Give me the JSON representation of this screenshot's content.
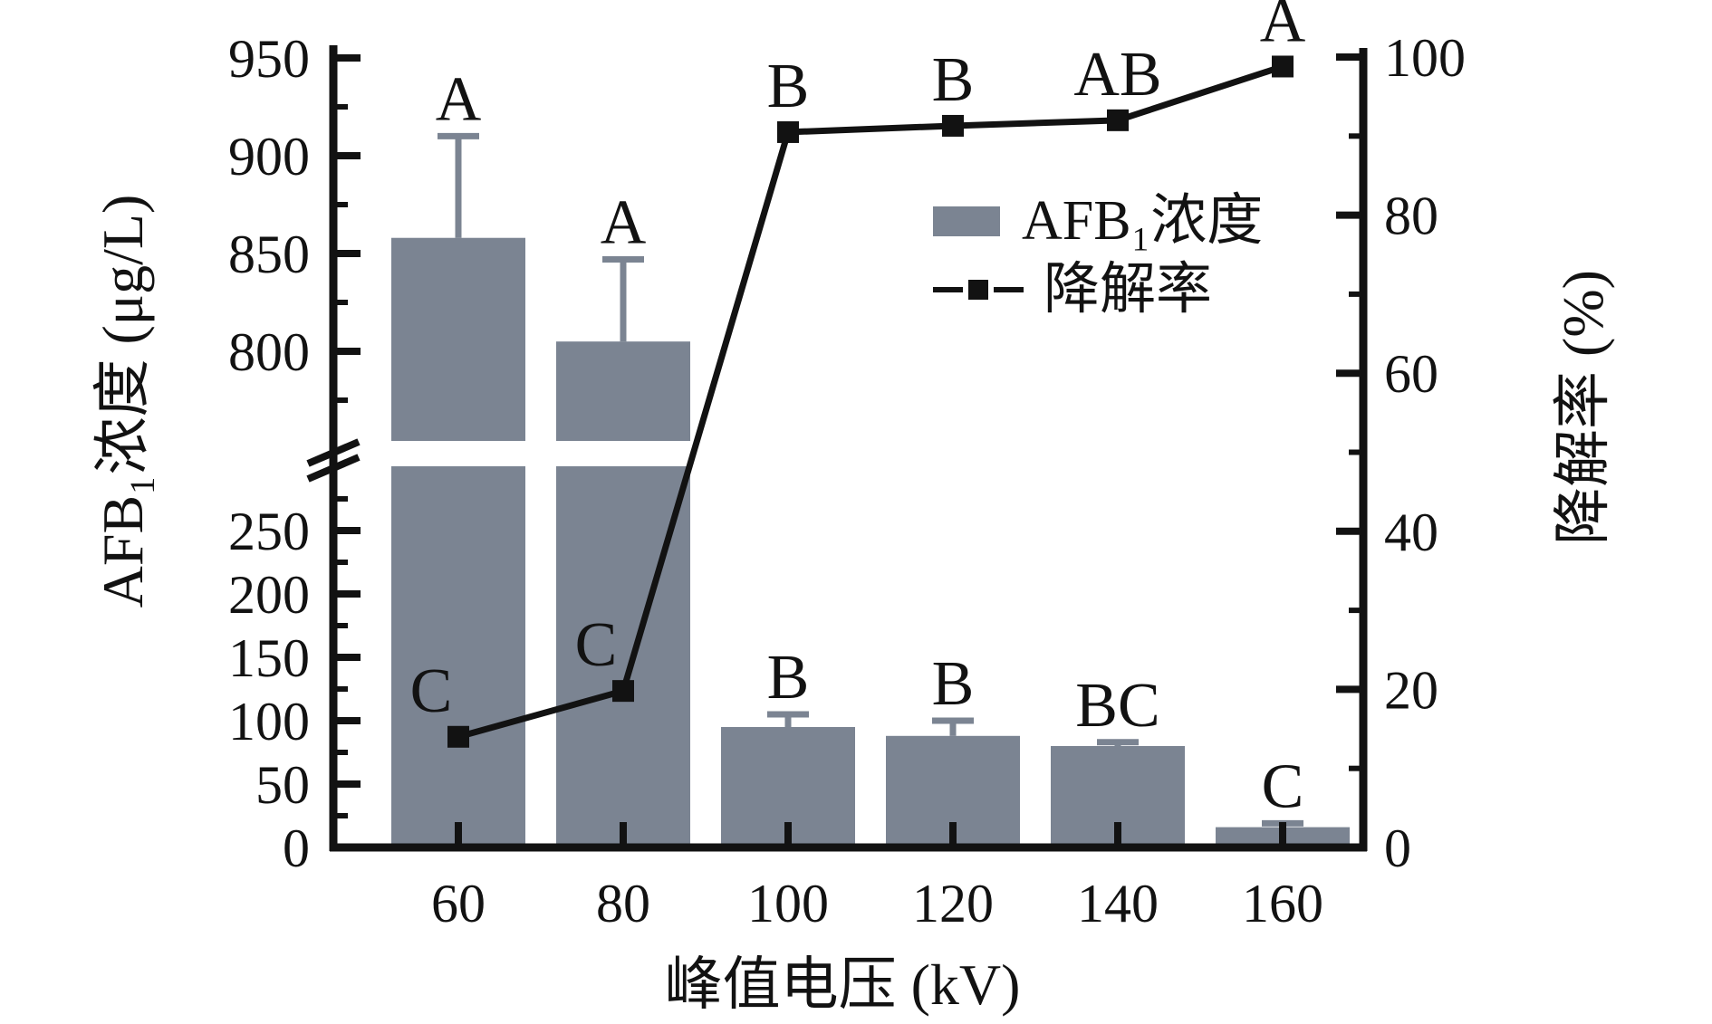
{
  "chart_data": {
    "type": "bar",
    "categories": [
      "60",
      "80",
      "100",
      "120",
      "140",
      "160"
    ],
    "xlabel": "峰值电压 (kV)",
    "left_axis": {
      "label": "AFB₁浓度 (μg/L)",
      "unit": "μg/L",
      "lower_ticks": [
        0,
        50,
        100,
        150,
        200,
        250
      ],
      "upper_ticks": [
        800,
        850,
        900,
        950
      ],
      "minor_step": 25,
      "axis_break_between": [
        310,
        770
      ]
    },
    "right_axis": {
      "label": "降解率 (%)",
      "unit": "%",
      "ticks": [
        0,
        20,
        40,
        60,
        80,
        100
      ],
      "minor_step": 10,
      "lim": [
        0,
        100
      ]
    },
    "series": [
      {
        "name": "AFB₁浓度",
        "type": "bar",
        "axis": "left",
        "values": [
          858,
          805,
          95,
          88,
          80,
          16
        ],
        "errors": [
          52,
          42,
          10,
          12,
          3,
          3
        ],
        "sig_letters": [
          "A",
          "A",
          "B",
          "B",
          "BC",
          "C"
        ]
      },
      {
        "name": "降解率",
        "type": "line",
        "axis": "right",
        "marker": "square",
        "values": [
          14,
          19.8,
          90.5,
          91.3,
          92,
          98.8
        ],
        "sig_letters": [
          "C",
          "C",
          "B",
          "B",
          "AB",
          "A"
        ]
      }
    ],
    "legend": {
      "position": "upper-middle-right",
      "entries": [
        {
          "label": "AFB₁浓度",
          "glyph": "bar-swatch"
        },
        {
          "label": "降解率",
          "glyph": "line-square-marker"
        }
      ]
    }
  },
  "colors": {
    "bar": "#7b8492",
    "error_bar": "#7b8492",
    "line": "#121212",
    "marker": "#121212",
    "text": "#121212",
    "axis": "#121212",
    "background": "#ffffff"
  }
}
